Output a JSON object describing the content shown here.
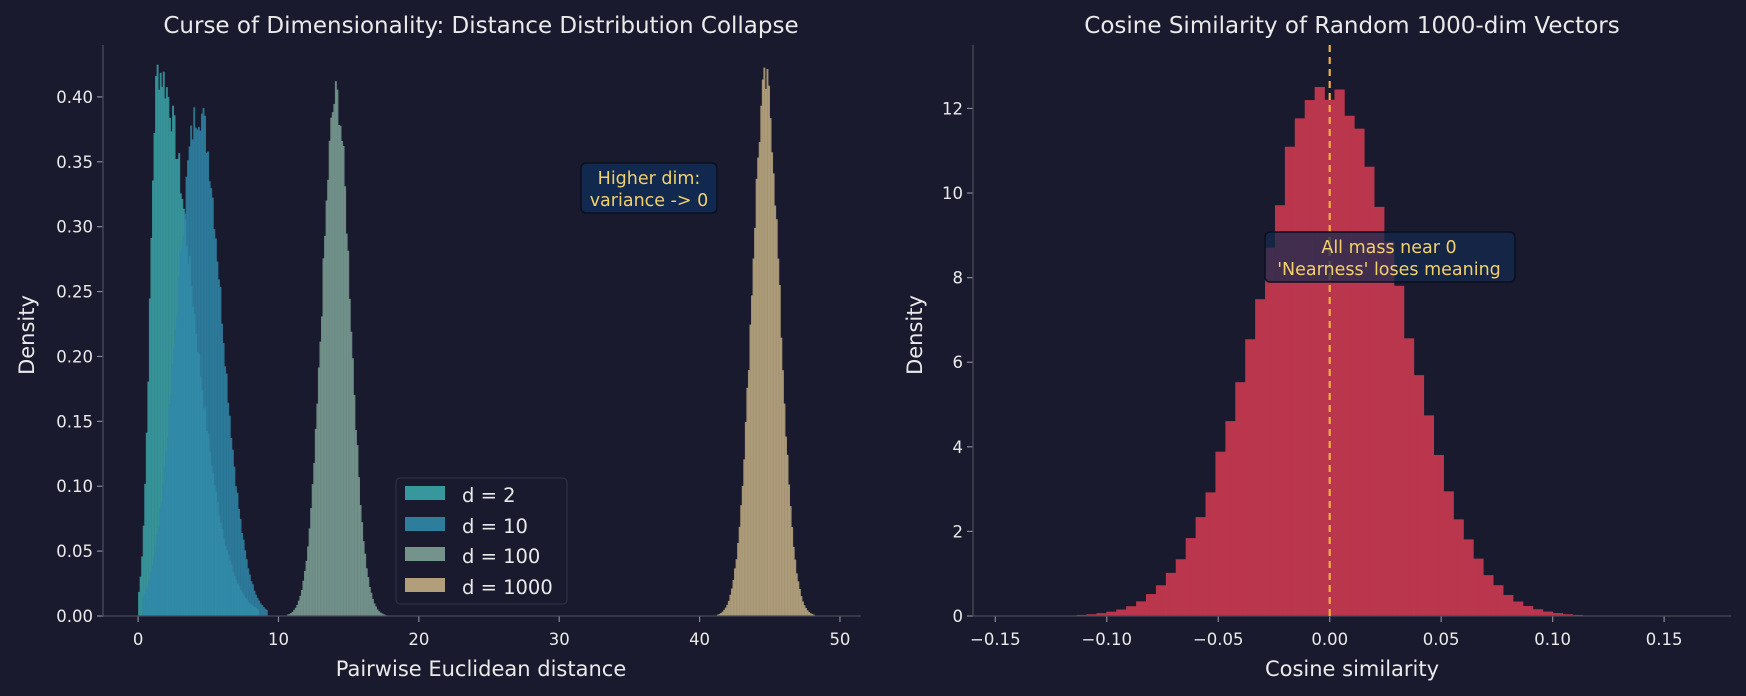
{
  "chart_data": [
    {
      "type": "histogram",
      "title": "Curse of Dimensionality: Distance Distribution Collapse",
      "xlabel": "Pairwise Euclidean distance",
      "ylabel": "Density",
      "xlim": [
        -2.5,
        51.5
      ],
      "ylim": [
        0,
        0.44
      ],
      "xticks": [
        0,
        10,
        20,
        30,
        40,
        50
      ],
      "yticks": [
        "0.00",
        "0.05",
        "0.10",
        "0.15",
        "0.20",
        "0.25",
        "0.30",
        "0.35",
        "0.40"
      ],
      "legend_position": "lower-center",
      "series": [
        {
          "name": "d = 2",
          "label": "d = 2",
          "distribution": "rayleigh",
          "min": 0,
          "max": 8.6,
          "mode": 1.4,
          "peak": 0.42,
          "color": "#3aa6a8"
        },
        {
          "name": "d = 10",
          "label": "d = 10",
          "distribution": "chi",
          "min": 0.3,
          "max": 9.2,
          "mode": 4.3,
          "peak": 0.39,
          "color": "#3088aa"
        },
        {
          "name": "d = 100",
          "label": "d = 100",
          "distribution": "normal",
          "mean": 14.1,
          "sd": 1.0,
          "peak": 0.4,
          "color": "#7ea296"
        },
        {
          "name": "d = 1000",
          "label": "d = 1000",
          "distribution": "normal",
          "mean": 44.7,
          "sd": 0.99,
          "peak": 0.41,
          "color": "#c2ae84"
        }
      ],
      "annotation": {
        "line1": "Higher dim:",
        "line2": "variance -> 0",
        "x": 36.5,
        "y": 0.33
      }
    },
    {
      "type": "histogram",
      "title": "Cosine Similarity of Random 1000-dim Vectors",
      "xlabel": "Cosine similarity",
      "ylabel": "Density",
      "xlim": [
        -0.16,
        0.18
      ],
      "ylim": [
        0,
        13.5
      ],
      "xticks": [
        "−0.15",
        "−0.10",
        "−0.05",
        "0.00",
        "0.05",
        "0.10",
        "0.15"
      ],
      "xtick_values": [
        -0.15,
        -0.1,
        -0.05,
        0.0,
        0.05,
        0.1,
        0.15
      ],
      "ytick_values": [
        0,
        2,
        4,
        6,
        8,
        10,
        12
      ],
      "yticks": [
        "0",
        "2",
        "4",
        "6",
        "8",
        "10",
        "12"
      ],
      "series": [
        {
          "name": "cosine similarity",
          "distribution": "normal",
          "mean": 0.0,
          "sd": 0.0316,
          "peak": 12.6,
          "color": "#c8384f"
        }
      ],
      "vline": {
        "x": 0.0,
        "style": "dashed",
        "color": "#f0b040"
      },
      "annotation": {
        "line1": "All mass near 0",
        "line2": "'Nearness' loses meaning",
        "x": 0.031,
        "y": 8.5
      }
    }
  ]
}
